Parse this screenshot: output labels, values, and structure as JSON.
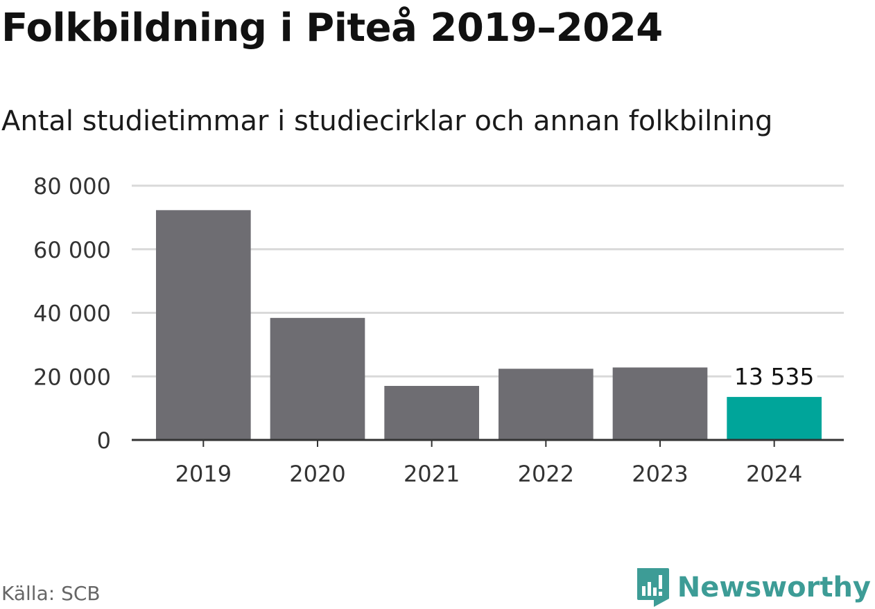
{
  "title": "Folkbildning i Piteå 2019–2024",
  "subtitle": "Antal studietimmar i studiecirklar och annan folkbilning",
  "source": "Källa: SCB",
  "brand": {
    "name": "Newsworthy",
    "icon": "newsworthy-logo-icon",
    "color": "#3d9c96"
  },
  "colors": {
    "bar": "#6e6d72",
    "highlight": "#00a59a",
    "grid": "#d9d9d9",
    "axis": "#333333"
  },
  "chart_data": {
    "type": "bar",
    "categories": [
      "2019",
      "2020",
      "2021",
      "2022",
      "2023",
      "2024"
    ],
    "values": [
      72300,
      38400,
      17000,
      22400,
      22800,
      13535
    ],
    "highlight_index": 5,
    "data_labels": [
      {
        "index": 5,
        "text": "13 535"
      }
    ],
    "ylim": [
      0,
      80000
    ],
    "yticks": [
      0,
      20000,
      40000,
      60000,
      80000
    ],
    "ytick_labels": [
      "0",
      "20 000",
      "40 000",
      "60 000",
      "80 000"
    ],
    "grid": true,
    "legend": "none",
    "xlabel": "",
    "ylabel": ""
  }
}
